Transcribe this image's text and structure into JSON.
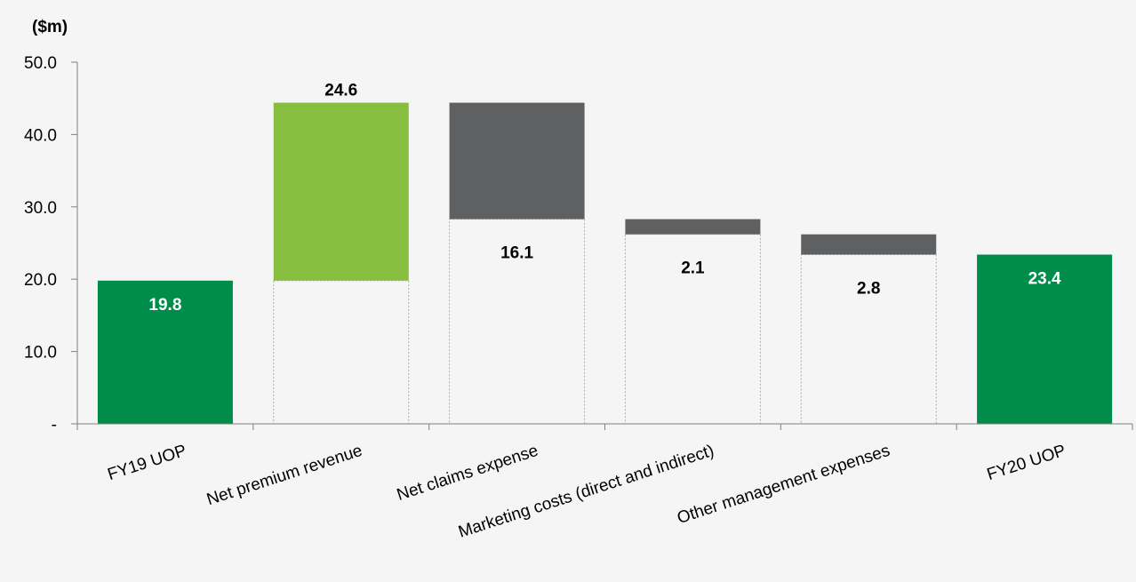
{
  "chart_data": {
    "type": "bar",
    "subtype": "waterfall",
    "unit_label": "($m)",
    "ylim": [
      0,
      50
    ],
    "y_ticks": [
      {
        "value": 0,
        "label": "-"
      },
      {
        "value": 10,
        "label": "10.0"
      },
      {
        "value": 20,
        "label": "20.0"
      },
      {
        "value": 30,
        "label": "30.0"
      },
      {
        "value": 40,
        "label": "40.0"
      },
      {
        "value": 50,
        "label": "50.0"
      }
    ],
    "grid": false,
    "categories": [
      "FY19 UOP",
      "Net premium revenue",
      "Net claims expense",
      "Marketing costs (direct and indirect)",
      "Other management expenses",
      "FY20 UOP"
    ],
    "steps": [
      {
        "category": "FY19 UOP",
        "kind": "total",
        "value": 19.8,
        "label": "19.8"
      },
      {
        "category": "Net premium revenue",
        "kind": "increase",
        "value": 24.6,
        "label": "24.6"
      },
      {
        "category": "Net claims expense",
        "kind": "decrease",
        "value": 16.1,
        "label": "16.1"
      },
      {
        "category": "Marketing costs (direct and indirect)",
        "kind": "decrease",
        "value": 2.1,
        "label": "2.1"
      },
      {
        "category": "Other management expenses",
        "kind": "decrease",
        "value": 2.8,
        "label": "2.8"
      },
      {
        "category": "FY20 UOP",
        "kind": "total",
        "value": 23.4,
        "label": "23.4"
      }
    ],
    "colors": {
      "total": "#008c4a",
      "increase": "#86bf3f",
      "decrease": "#5f6062",
      "total_label": "#ffffff",
      "other_label": "#000000"
    }
  }
}
